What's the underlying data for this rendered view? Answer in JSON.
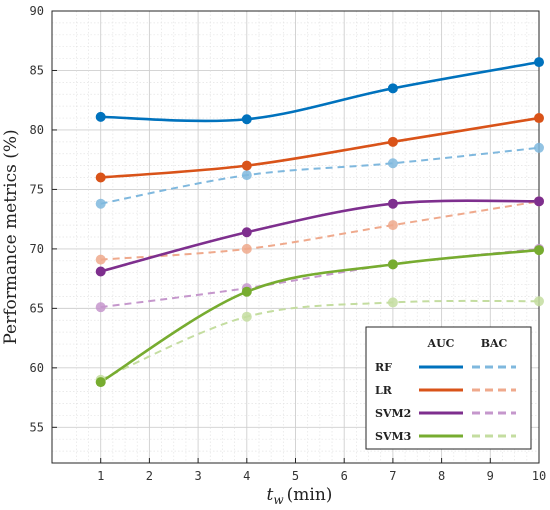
{
  "chart_data": {
    "type": "line",
    "title": "",
    "xlabel_var": "t",
    "xlabel_sub": "w",
    "xlabel_unit": "(min)",
    "ylabel": "Performance metrics (%)",
    "xlim": [
      0,
      10
    ],
    "ylim": [
      52,
      90
    ],
    "xticks": [
      1,
      2,
      3,
      4,
      5,
      6,
      7,
      8,
      9,
      10
    ],
    "yticks": [
      55,
      60,
      65,
      70,
      75,
      80,
      85,
      90
    ],
    "grid": true,
    "legend_position": "bottom-right",
    "legend_headers": [
      "AUC",
      "BAC"
    ],
    "x": [
      1,
      4,
      7,
      10
    ],
    "series": [
      {
        "name": "RF",
        "metric": "AUC",
        "values": [
          81.1,
          80.9,
          83.5,
          85.7
        ],
        "color": "#0072BD",
        "dashed": false
      },
      {
        "name": "RF",
        "metric": "BAC",
        "values": [
          73.8,
          76.2,
          77.2,
          78.5
        ],
        "color": "#7FB8DE",
        "dashed": true
      },
      {
        "name": "LR",
        "metric": "AUC",
        "values": [
          76.0,
          77.0,
          79.0,
          81.0
        ],
        "color": "#D95319",
        "dashed": false
      },
      {
        "name": "LR",
        "metric": "BAC",
        "values": [
          69.1,
          70.0,
          72.0,
          74.0
        ],
        "color": "#EFA98C",
        "dashed": true
      },
      {
        "name": "SVM2",
        "metric": "AUC",
        "values": [
          68.1,
          71.4,
          73.8,
          74.0
        ],
        "color": "#7E2F8E",
        "dashed": false
      },
      {
        "name": "SVM2",
        "metric": "BAC",
        "values": [
          65.1,
          66.7,
          68.7,
          70.0
        ],
        "color": "#C597CC",
        "dashed": true
      },
      {
        "name": "SVM3",
        "metric": "AUC",
        "values": [
          58.8,
          66.4,
          68.7,
          69.9
        ],
        "color": "#77AC30",
        "dashed": false
      },
      {
        "name": "SVM3",
        "metric": "BAC",
        "values": [
          59.0,
          64.3,
          65.5,
          65.6
        ],
        "color": "#C4DDA0",
        "dashed": true
      }
    ],
    "legend_rows": [
      "RF",
      "LR",
      "SVM2",
      "SVM3"
    ]
  }
}
